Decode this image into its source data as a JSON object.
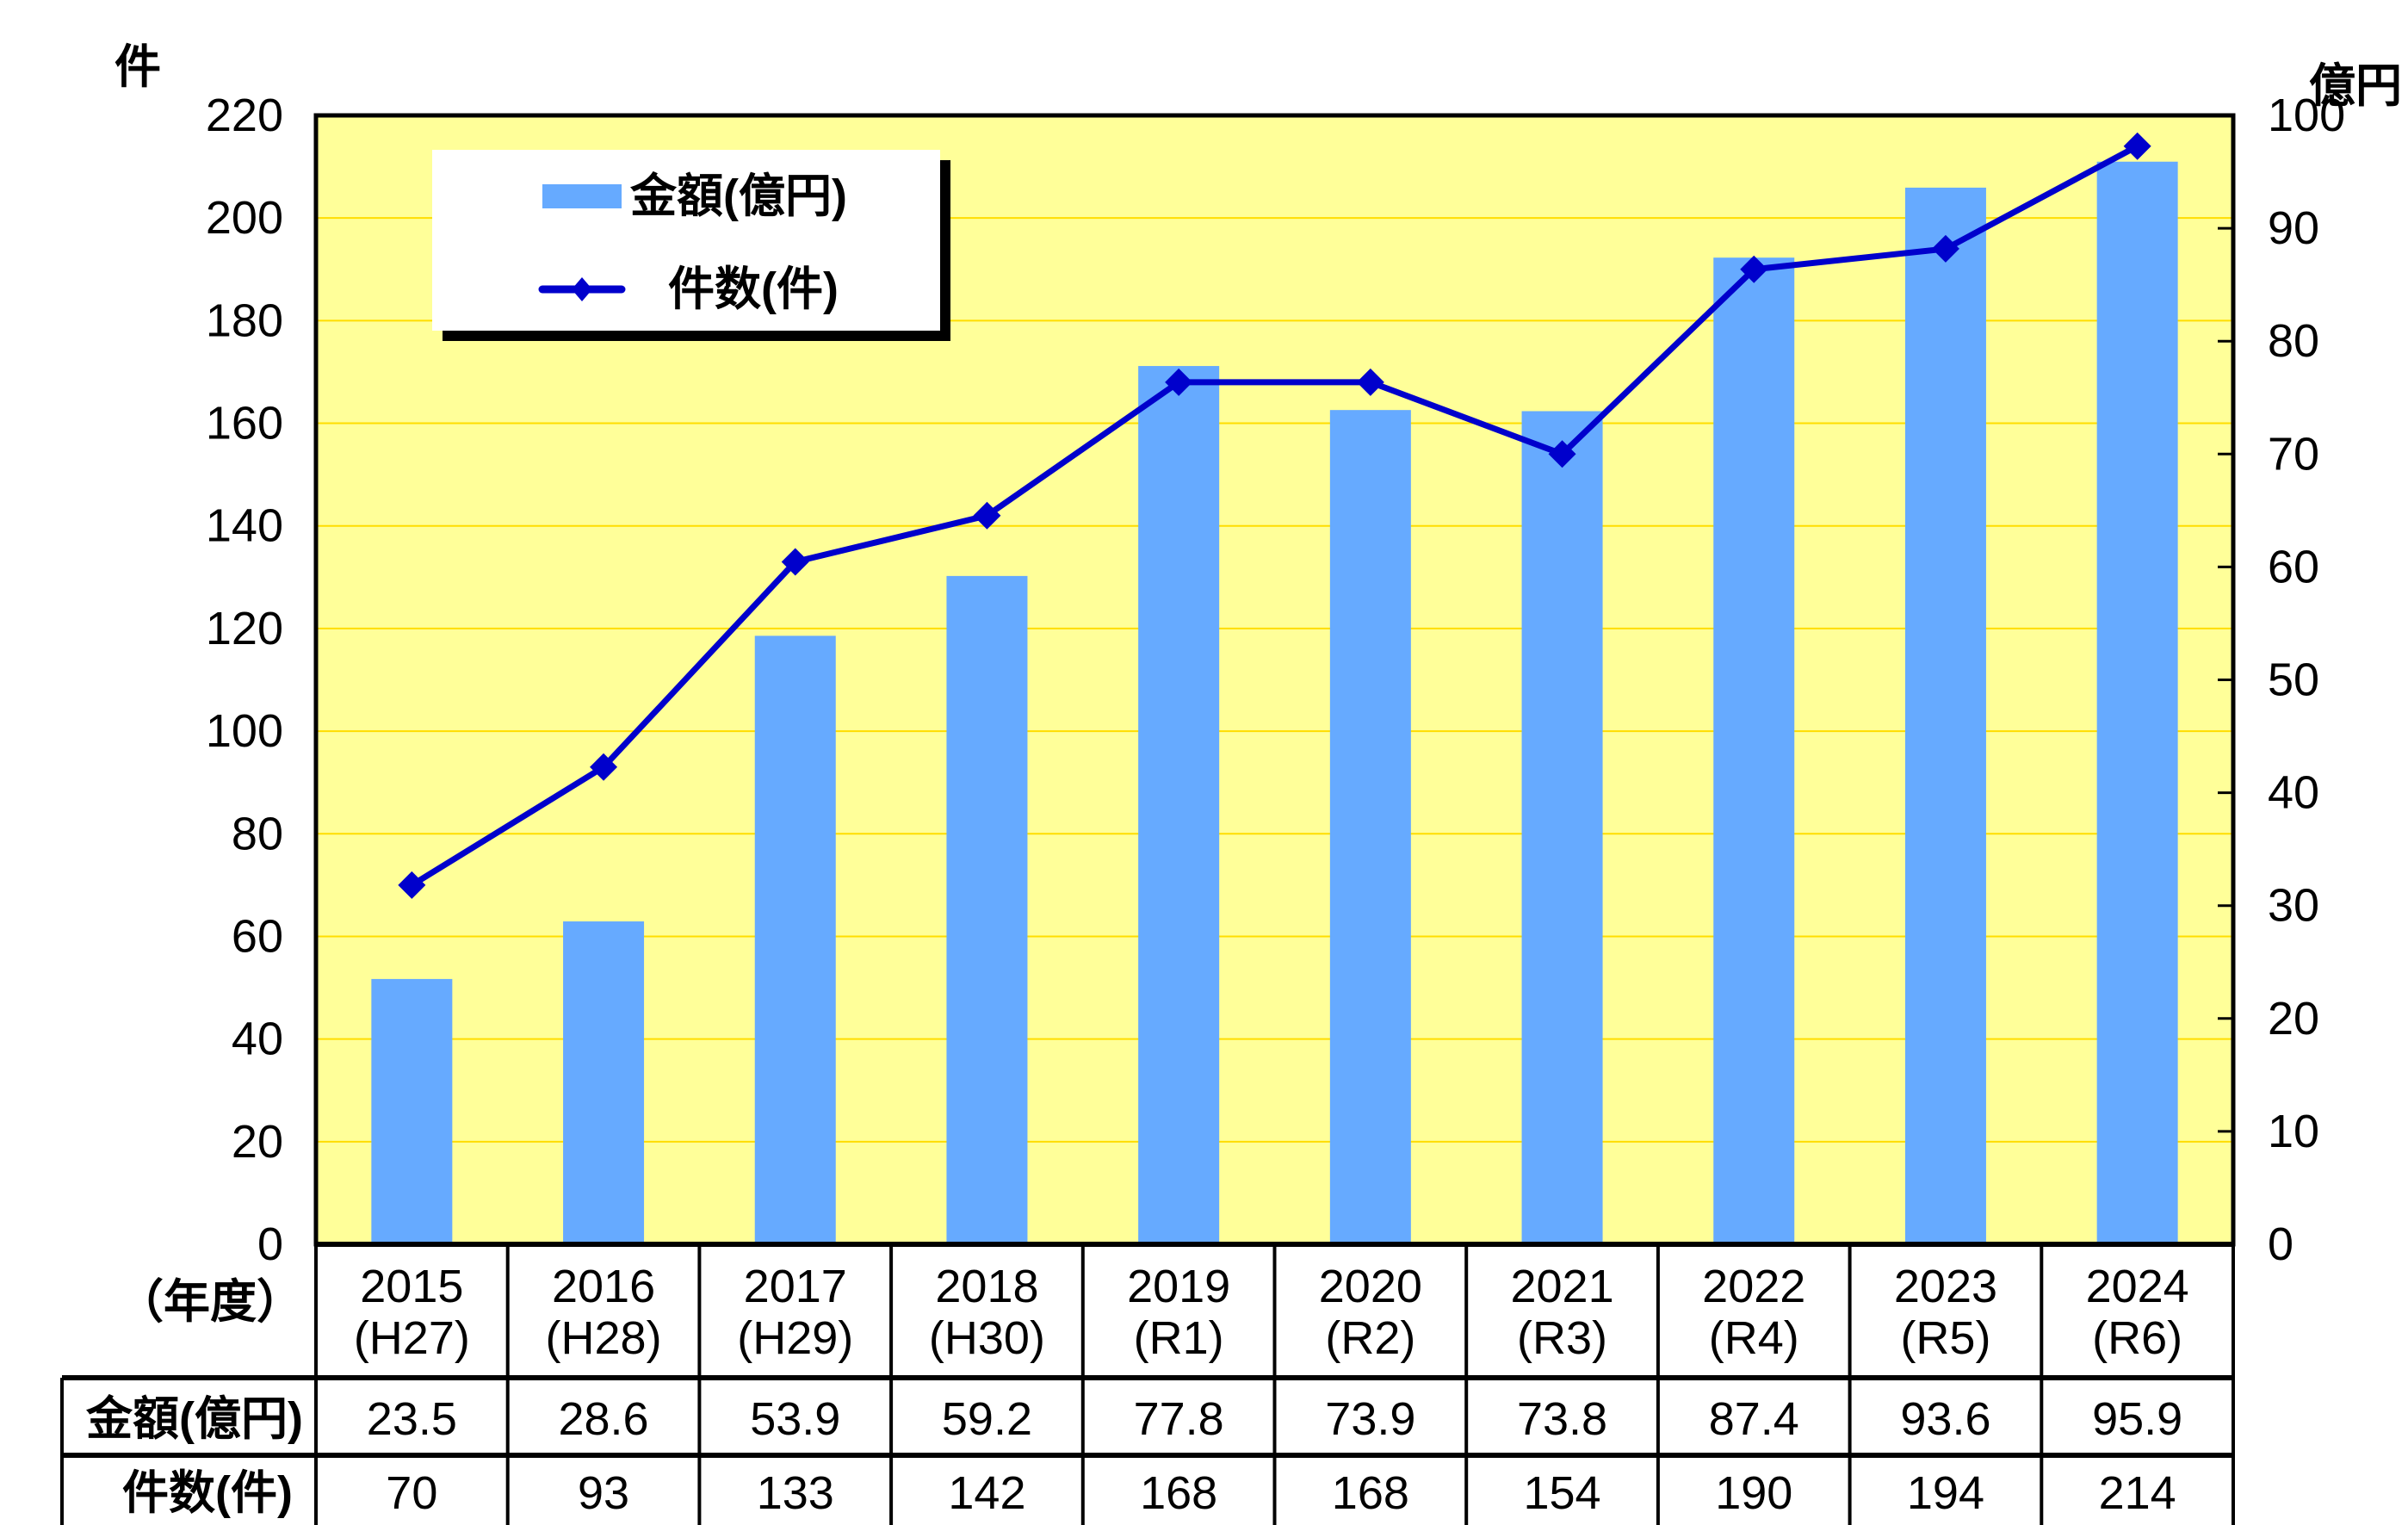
{
  "chart_data": {
    "type": "bar+line",
    "categories": [
      "2015",
      "2016",
      "2017",
      "2018",
      "2019",
      "2020",
      "2021",
      "2022",
      "2023",
      "2024"
    ],
    "category_sublabels": [
      "(H27)",
      "(H28)",
      "(H29)",
      "(H30)",
      "(R1)",
      "(R2)",
      "(R3)",
      "(R4)",
      "(R5)",
      "(R6)"
    ],
    "x_header": "（年度）",
    "series": [
      {
        "name": "金額(億円)",
        "type": "bar",
        "axis": "right",
        "color": "#66aaff",
        "values": [
          23.5,
          28.6,
          53.9,
          59.2,
          77.8,
          73.9,
          73.8,
          87.4,
          93.6,
          95.9
        ],
        "value_labels": [
          "23.5",
          "28.6",
          "53.9",
          "59.2",
          "77.8",
          "73.9",
          "73.8",
          "87.4",
          "93.6",
          "95.9"
        ]
      },
      {
        "name": "件数(件)",
        "type": "line",
        "axis": "left",
        "color": "#0000cc",
        "marker": "diamond",
        "values": [
          70,
          93,
          133,
          142,
          168,
          168,
          154,
          190,
          194,
          214
        ],
        "value_labels": [
          "70",
          "93",
          "133",
          "142",
          "168",
          "168",
          "154",
          "190",
          "194",
          "214"
        ]
      }
    ],
    "table_row_labels": [
      "金額(億円)",
      "件数(件)"
    ],
    "ylabel_left": "件",
    "ylabel_right": "億円",
    "ylim_left": [
      0,
      220
    ],
    "ylim_right": [
      0,
      100
    ],
    "yticks_left": [
      "0",
      "20",
      "40",
      "60",
      "80",
      "100",
      "120",
      "140",
      "160",
      "180",
      "200",
      "220"
    ],
    "yticks_right": [
      "0",
      "10",
      "20",
      "30",
      "40",
      "50",
      "60",
      "70",
      "80",
      "90",
      "100"
    ],
    "grid": true,
    "plot_background": "#ffff99",
    "grid_color": "#ffdd00",
    "legend_placement": "top-left"
  }
}
